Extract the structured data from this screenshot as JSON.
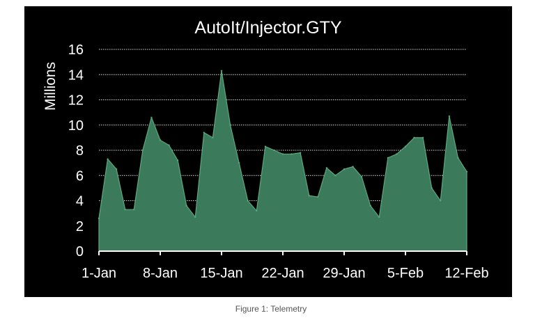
{
  "caption": "Figure 1: Telemetry",
  "chart_data": {
    "type": "area",
    "title": "AutoIt/Injector.GTY",
    "ylabel": "Millions",
    "xlabel": "",
    "ylim": [
      0,
      16
    ],
    "yticks": [
      0,
      2,
      4,
      6,
      8,
      10,
      12,
      14,
      16
    ],
    "grid": true,
    "legend": "none",
    "x_labels": [
      "1-Jan",
      "8-Jan",
      "15-Jan",
      "22-Jan",
      "29-Jan",
      "5-Feb",
      "12-Feb"
    ],
    "x_label_index": [
      0,
      7,
      14,
      21,
      28,
      35,
      42
    ],
    "series": [
      {
        "values": [
          2.6,
          7.3,
          6.5,
          3.3,
          3.3,
          8.0,
          10.6,
          8.8,
          8.4,
          7.2,
          3.6,
          2.7,
          9.4,
          9.0,
          14.3,
          10.0,
          7.0,
          4.0,
          3.2,
          8.3,
          8.0,
          7.7,
          7.7,
          7.8,
          4.4,
          4.3,
          6.6,
          6.0,
          6.5,
          6.7,
          5.9,
          3.6,
          2.7,
          7.4,
          7.7,
          8.3,
          9.0,
          9.0,
          5.0,
          4.0,
          10.7,
          7.4,
          6.3
        ],
        "color": "#3c7a5c"
      }
    ],
    "colors": {
      "background": "#000000",
      "fill": "#3c7a5c",
      "stroke": "#5aaa7e",
      "text": "#ffffff",
      "grid": "#ffffff"
    }
  }
}
